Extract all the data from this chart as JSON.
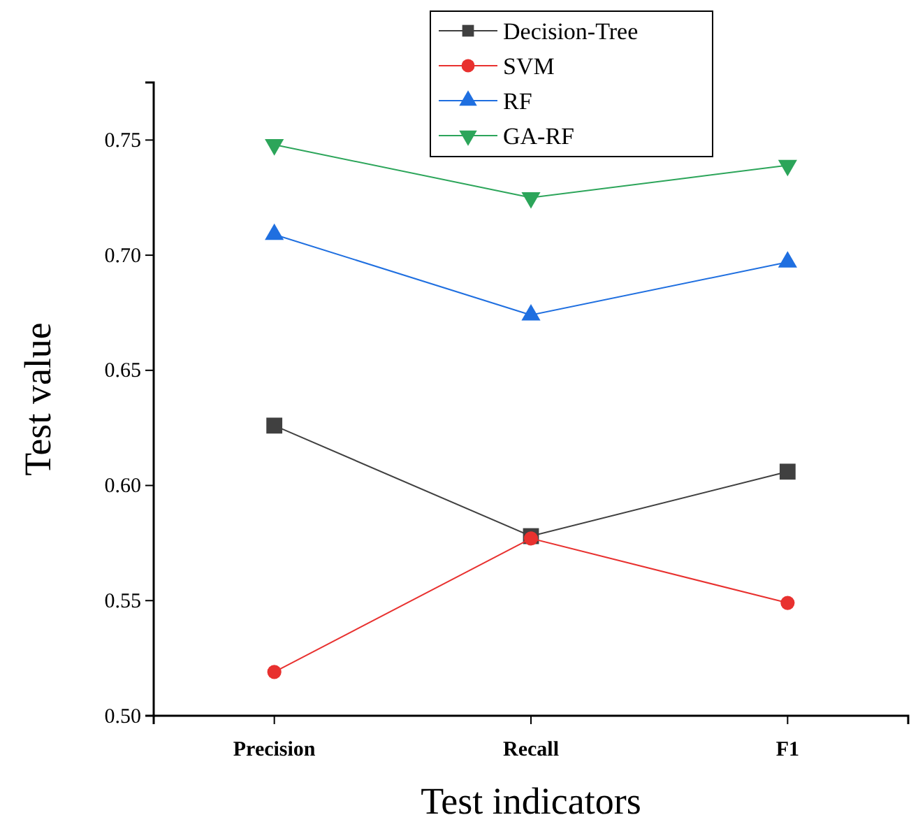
{
  "chart_data": {
    "type": "line",
    "xlabel": "Test indicators",
    "ylabel": "Test value",
    "categories": [
      "Precision",
      "Recall",
      "F1"
    ],
    "ylim": [
      0.5,
      0.775
    ],
    "yticks": [
      {
        "value": 0.5,
        "label": "0.50"
      },
      {
        "value": 0.55,
        "label": "0.55"
      },
      {
        "value": 0.6,
        "label": "0.60"
      },
      {
        "value": 0.65,
        "label": "0.65"
      },
      {
        "value": 0.7,
        "label": "0.70"
      },
      {
        "value": 0.75,
        "label": "0.75"
      }
    ],
    "legend": "top",
    "grid": false,
    "series": [
      {
        "name": "Decision-Tree",
        "color": "#404040",
        "marker": "square",
        "values": [
          0.626,
          0.578,
          0.606
        ]
      },
      {
        "name": "SVM",
        "color": "#e8312f",
        "marker": "circle",
        "values": [
          0.519,
          0.577,
          0.549
        ]
      },
      {
        "name": "RF",
        "color": "#1f6fe0",
        "marker": "triangle",
        "values": [
          0.709,
          0.674,
          0.697
        ]
      },
      {
        "name": "GA-RF",
        "color": "#2ca55a",
        "marker": "triangle-down",
        "values": [
          0.748,
          0.725,
          0.739
        ]
      }
    ]
  }
}
